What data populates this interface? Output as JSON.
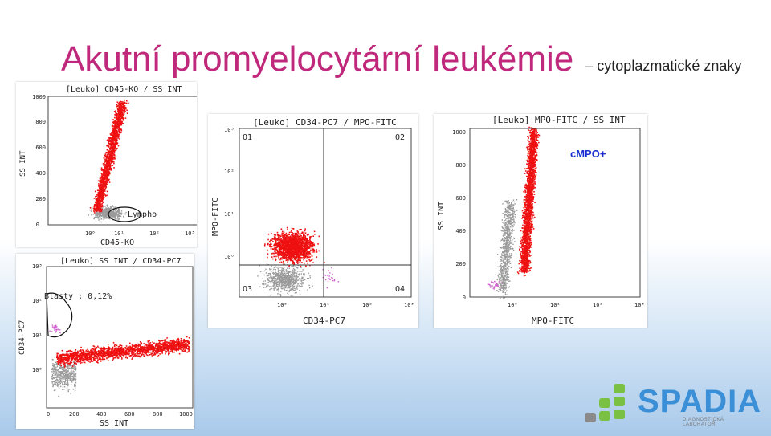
{
  "title": {
    "main": "Akutní promyelocytární leukémie",
    "sub": "– cytoplazmatické znaky"
  },
  "plots": {
    "p1": {
      "header": "[Leuko] CD45-KO / SS INT",
      "xlabel": "CD45-KO",
      "ylabel": "SS INT",
      "xticks": [
        "10⁰",
        "10¹",
        "10²",
        "10³"
      ],
      "yticks": [
        "0",
        "200",
        "400",
        "600",
        "800",
        "1000"
      ],
      "gate_label": "Lympho"
    },
    "p2": {
      "header": "[Leuko] SS INT / CD34-PC7",
      "xlabel": "SS INT",
      "ylabel": "CD34-PC7",
      "xticks": [
        "0",
        "200",
        "400",
        "600",
        "800",
        "1000"
      ],
      "yticks": [
        "10⁰",
        "10¹",
        "10²",
        "10³"
      ],
      "gate_label": "Blasty : 0,12%"
    },
    "p3": {
      "header": "[Leuko] CD34-PC7 / MPO-FITC",
      "xlabel": "CD34-PC7",
      "ylabel": "MPO-FITC",
      "xticks": [
        "10⁰",
        "10¹",
        "10²",
        "10³"
      ],
      "yticks": [
        "10⁰",
        "10¹",
        "10²",
        "10³"
      ],
      "quadrants": [
        "O1",
        "O2",
        "O3",
        "O4"
      ]
    },
    "p4": {
      "header": "[Leuko] MPO-FITC / SS INT",
      "xlabel": "MPO-FITC",
      "ylabel": "SS INT",
      "xticks": [
        "10⁰",
        "10¹",
        "10²",
        "10³"
      ],
      "yticks": [
        "0",
        "200",
        "400",
        "600",
        "800",
        "1000"
      ],
      "annotation": "cMPO+"
    }
  },
  "colors": {
    "title_accent": "#c0287c",
    "event_red": "#ee1111",
    "event_gray": "#9a9a9a",
    "event_magenta": "#d060d0",
    "annotation_blue": "#1a2fd0",
    "logo_green": "#7ac143",
    "logo_blue": "#3a8fd6"
  },
  "logo": {
    "word": "SPADIA",
    "tagline": "DIAGNOSTICKÁ LABORATOŘ"
  }
}
